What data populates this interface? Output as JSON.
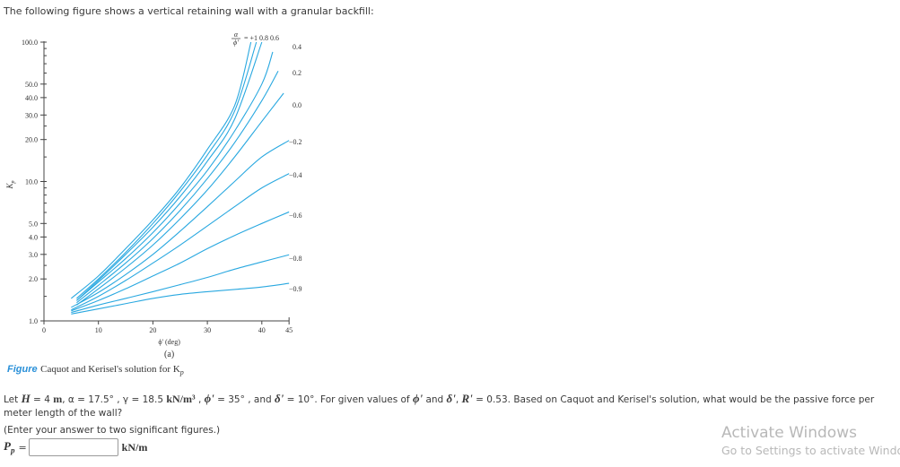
{
  "intro_text": "The following figure shows a vertical retaining wall with a granular backfill:",
  "chart_data": {
    "type": "line",
    "title": "Caquot and Kerisel's solution for Kp",
    "subtitle": "(a)",
    "xlabel": "ϕ' (deg)",
    "ylabel": "Kp",
    "xlim": [
      0,
      45
    ],
    "ylim": [
      1.0,
      100.0
    ],
    "yscale": "log",
    "x_ticks": [
      0,
      10,
      20,
      30,
      40,
      45
    ],
    "y_tick_labels": [
      "1.0",
      "2.0",
      "3.0",
      "4.0",
      "5.0",
      "10.0",
      "20.0",
      "30.0",
      "40.0",
      "50.0",
      "100.0"
    ],
    "grid": false,
    "legend_title": "α/ϕ' =",
    "legend_position": "curve-end labels (top and right)",
    "color": "#29a8e0",
    "series": [
      {
        "name": "+1",
        "x": [
          5,
          10,
          15,
          20,
          25,
          30,
          35,
          38
        ],
        "values": [
          1.45,
          2.1,
          3.3,
          5.3,
          9.0,
          17.0,
          35.0,
          100.0
        ]
      },
      {
        "name": "0.8",
        "x": [
          6,
          10,
          15,
          20,
          25,
          30,
          35,
          39
        ],
        "values": [
          1.45,
          2.0,
          3.1,
          5.0,
          8.5,
          15.5,
          32.0,
          100.0
        ]
      },
      {
        "name": "0.6",
        "x": [
          6,
          10,
          15,
          20,
          25,
          30,
          35,
          40
        ],
        "values": [
          1.4,
          1.95,
          3.0,
          4.7,
          7.8,
          14.0,
          28.0,
          100.0
        ]
      },
      {
        "name": "0.4",
        "x": [
          6,
          10,
          15,
          20,
          25,
          30,
          35,
          40,
          42
        ],
        "values": [
          1.4,
          1.9,
          2.8,
          4.3,
          7.0,
          12.0,
          23.0,
          50.0,
          85.0
        ]
      },
      {
        "name": "0.2",
        "x": [
          6,
          10,
          15,
          20,
          25,
          30,
          35,
          40,
          43
        ],
        "values": [
          1.35,
          1.8,
          2.6,
          3.9,
          6.2,
          10.5,
          19.0,
          38.0,
          62.0
        ]
      },
      {
        "name": "0.0",
        "x": [
          6,
          10,
          15,
          20,
          25,
          30,
          35,
          40,
          44
        ],
        "values": [
          1.3,
          1.7,
          2.4,
          3.5,
          5.4,
          8.7,
          15.0,
          27.0,
          43.0
        ]
      },
      {
        "name": "-0.2",
        "x": [
          5,
          10,
          15,
          20,
          25,
          30,
          35,
          40,
          45
        ],
        "values": [
          1.25,
          1.6,
          2.15,
          3.0,
          4.4,
          6.6,
          10.0,
          15.0,
          19.7
        ]
      },
      {
        "name": "-0.4",
        "x": [
          5,
          10,
          15,
          20,
          25,
          30,
          35,
          40,
          45
        ],
        "values": [
          1.2,
          1.5,
          1.95,
          2.6,
          3.5,
          4.8,
          6.6,
          9.0,
          11.4
        ]
      },
      {
        "name": "-0.6",
        "x": [
          5,
          10,
          15,
          20,
          25,
          30,
          35,
          40,
          45
        ],
        "values": [
          1.18,
          1.4,
          1.7,
          2.1,
          2.6,
          3.3,
          4.1,
          5.0,
          6.05
        ]
      },
      {
        "name": "-0.8",
        "x": [
          5,
          10,
          15,
          20,
          25,
          30,
          35,
          40,
          45
        ],
        "values": [
          1.15,
          1.3,
          1.45,
          1.62,
          1.82,
          2.05,
          2.35,
          2.65,
          2.98
        ]
      },
      {
        "name": "-0.9",
        "x": [
          5,
          10,
          15,
          20,
          25,
          30,
          35,
          40,
          45
        ],
        "values": [
          1.12,
          1.22,
          1.33,
          1.45,
          1.55,
          1.62,
          1.68,
          1.75,
          1.86
        ]
      }
    ]
  },
  "caption": {
    "label": "Figure",
    "text": "Caquot and Kerisel's solution for K",
    "subscript": "p"
  },
  "question": {
    "p1": "Let ",
    "H": "H",
    "p2": " = 4 ",
    "u_m": "m",
    "p3": ", α = 17.5° , γ = 18.5 ",
    "u_kn": "kN/m³",
    "p4": " , ",
    "phi": "ϕ'",
    "p5": " = 35° , and ",
    "delta": "δ'",
    "p6": " = 10°. For given values of ",
    "phi2": "ϕ'",
    "p7": " and ",
    "delta2": "δ'",
    "p8": ", ",
    "R": "R'",
    "p9": " = 0.53. Based on Caquot and Kerisel's solution, what would be the passive force per meter length of the wall?"
  },
  "hint": "(Enter your answer to two significant figures.)",
  "answer": {
    "symbol": "P",
    "symbol_sub": "p",
    "equals": "=",
    "value": "",
    "unit": "kN/m"
  },
  "watermark": {
    "line1": "Activate Windows",
    "line2": "Go to Settings to activate Windows."
  }
}
